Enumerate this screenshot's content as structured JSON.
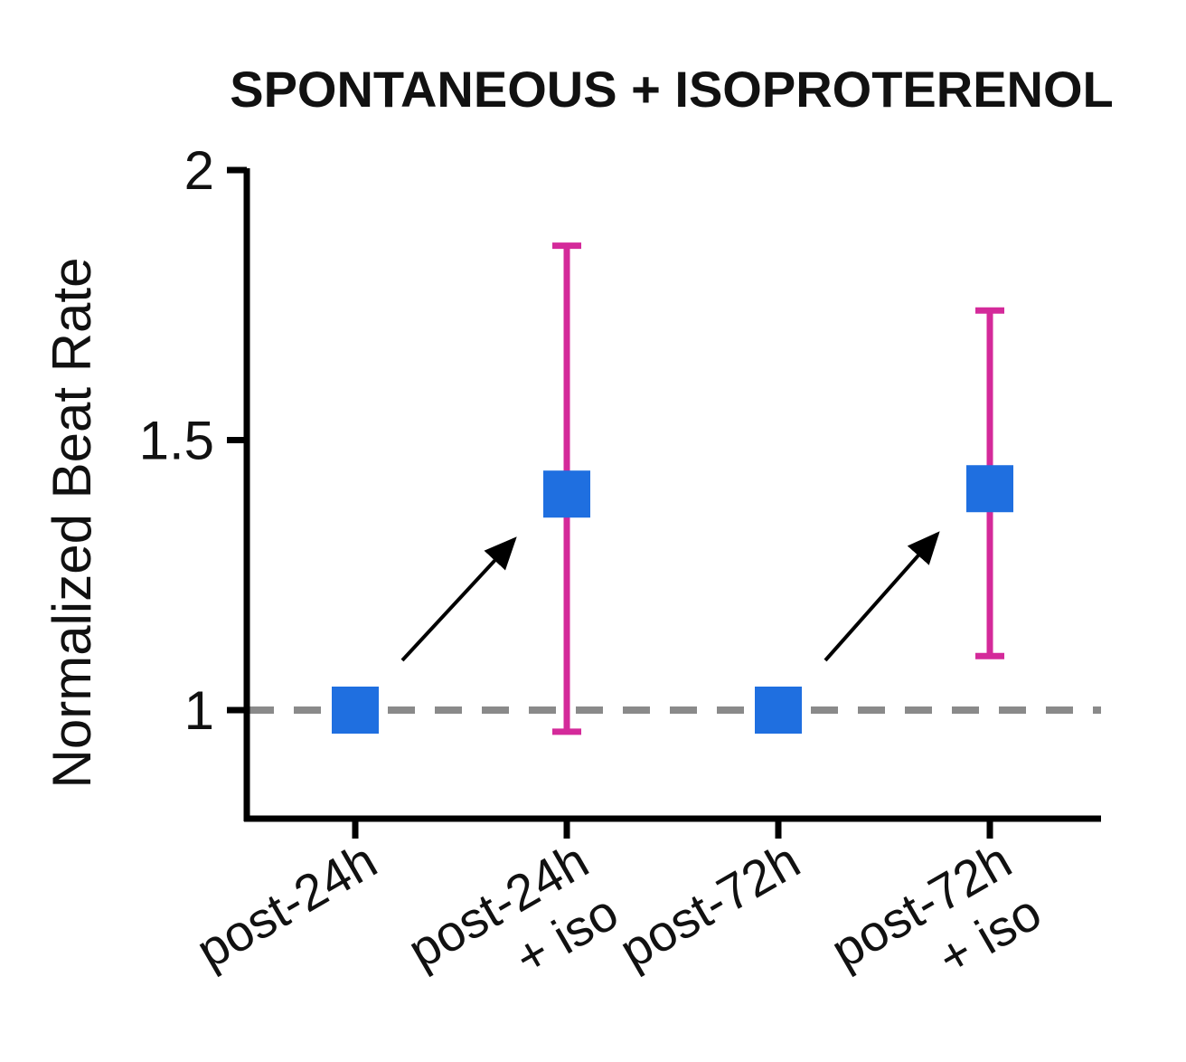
{
  "chart_data": {
    "type": "scatter",
    "title": "SPONTANEOUS + ISOPROTERENOL",
    "xlabel": "",
    "ylabel": "Normalized Beat Rate",
    "ylim": [
      0.8,
      2.0
    ],
    "yticks": [
      "1",
      "1.5",
      "2"
    ],
    "yticks_values": [
      1,
      1.5,
      2
    ],
    "reference_line": 1,
    "categories": [
      [
        "post-24h"
      ],
      [
        "post-24h",
        "+ iso"
      ],
      [
        "post-72h"
      ],
      [
        "post-72h",
        "+ iso"
      ]
    ],
    "points": [
      {
        "value": 1.0,
        "err_low": null,
        "err_high": null
      },
      {
        "value": 1.4,
        "err_low": 0.96,
        "err_high": 1.86
      },
      {
        "value": 1.0,
        "err_low": null,
        "err_high": null
      },
      {
        "value": 1.41,
        "err_low": 1.1,
        "err_high": 1.74
      }
    ],
    "arrows": [
      {
        "from": 0,
        "to": 1
      },
      {
        "from": 2,
        "to": 3
      }
    ],
    "grid": false,
    "colors": {
      "marker": "#1f6fe0",
      "errorbar": "#d42a9a",
      "reference": "#8a8a8a",
      "axis": "#000000"
    }
  }
}
